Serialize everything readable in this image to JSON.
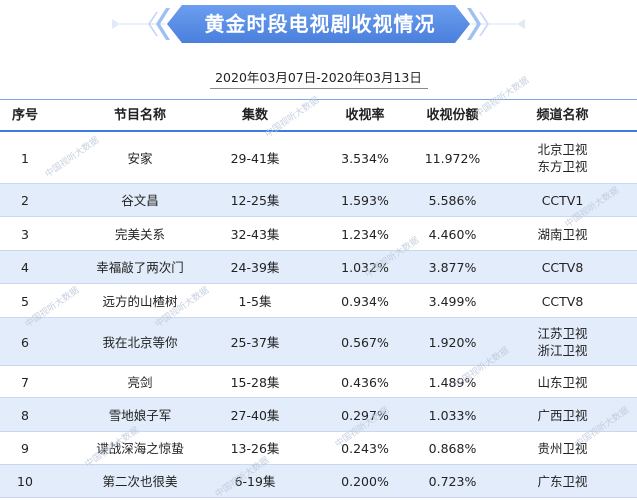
{
  "title": "黄金时段电视剧收视情况",
  "date_range": "2020年03月07日-2020年03月13日",
  "watermark": "中国视听大数据",
  "colors": {
    "banner": "#5b8ee6",
    "header_line": "#3d7be0",
    "alt_row": "#e3ecfa"
  },
  "table": {
    "headers": [
      "序号",
      "节目名称",
      "集数",
      "收视率",
      "收视份额",
      "频道名称"
    ],
    "rows": [
      {
        "rank": "1",
        "name": "安家",
        "episodes": "29-41集",
        "rating": "3.534%",
        "share": "11.972%",
        "channels": [
          "北京卫视",
          "东方卫视"
        ]
      },
      {
        "rank": "2",
        "name": "谷文昌",
        "episodes": "12-25集",
        "rating": "1.593%",
        "share": "5.586%",
        "channels": [
          "CCTV1"
        ]
      },
      {
        "rank": "3",
        "name": "完美关系",
        "episodes": "32-43集",
        "rating": "1.234%",
        "share": "4.460%",
        "channels": [
          "湖南卫视"
        ]
      },
      {
        "rank": "4",
        "name": "幸福敲了两次门",
        "episodes": "24-39集",
        "rating": "1.032%",
        "share": "3.877%",
        "channels": [
          "CCTV8"
        ]
      },
      {
        "rank": "5",
        "name": "远方的山楂树",
        "episodes": "1-5集",
        "rating": "0.934%",
        "share": "3.499%",
        "channels": [
          "CCTV8"
        ]
      },
      {
        "rank": "6",
        "name": "我在北京等你",
        "episodes": "25-37集",
        "rating": "0.567%",
        "share": "1.920%",
        "channels": [
          "江苏卫视",
          "浙江卫视"
        ]
      },
      {
        "rank": "7",
        "name": "亮剑",
        "episodes": "15-28集",
        "rating": "0.436%",
        "share": "1.489%",
        "channels": [
          "山东卫视"
        ]
      },
      {
        "rank": "8",
        "name": "雪地娘子军",
        "episodes": "27-40集",
        "rating": "0.297%",
        "share": "1.033%",
        "channels": [
          "广西卫视"
        ]
      },
      {
        "rank": "9",
        "name": "谍战深海之惊蛰",
        "episodes": "13-26集",
        "rating": "0.243%",
        "share": "0.868%",
        "channels": [
          "贵州卫视"
        ]
      },
      {
        "rank": "10",
        "name": "第二次也很美",
        "episodes": "6-19集",
        "rating": "0.200%",
        "share": "0.723%",
        "channels": [
          "广东卫视"
        ]
      }
    ]
  }
}
